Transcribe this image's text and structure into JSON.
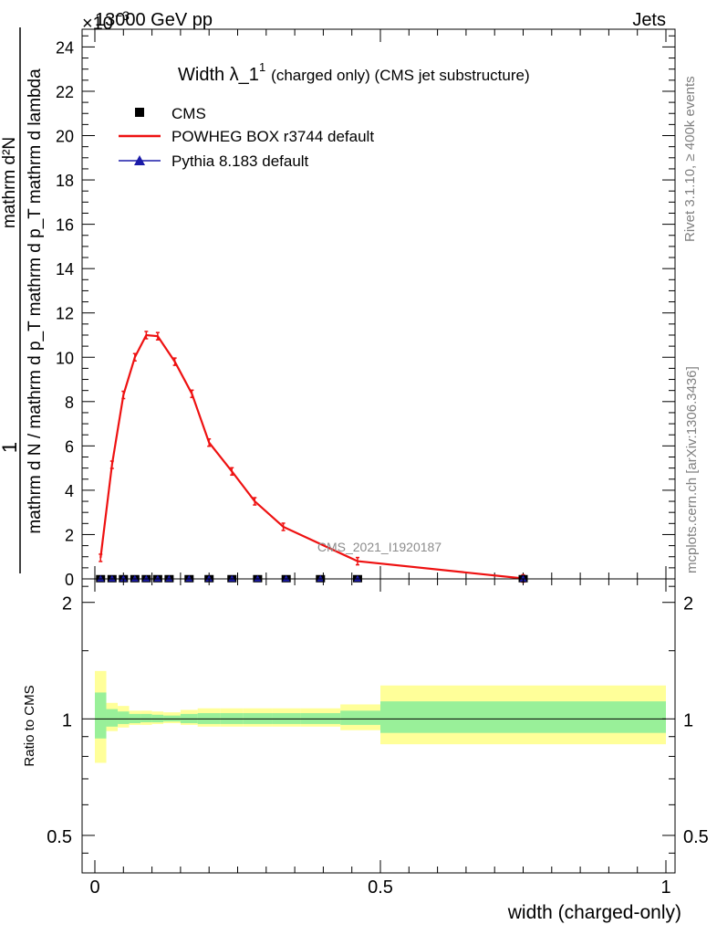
{
  "header": {
    "left": "13000 GeV pp",
    "right": "Jets",
    "exponent": "×10",
    "exponent_power": "−3"
  },
  "side_labels": {
    "rivet": "Rivet 3.1.10, ≥ 400k events",
    "mcplots": "mcplots.cern.ch [arXiv:1306.3436]"
  },
  "watermark": "CMS_2021_I1920187",
  "chart_data": [
    {
      "type": "line",
      "title_main": "Width λ_1",
      "title_sup": "1",
      "title_tail": "(charged only) (CMS jet substructure)",
      "ylabel_lines": [
        "1",
        "mathrm d N / mathrm d p_T mathrm d p_T mathrm d lambda",
        "mathrm d²N"
      ],
      "yticks": [
        0,
        2,
        4,
        6,
        8,
        10,
        12,
        14,
        16,
        18,
        20,
        22,
        24
      ],
      "ylim": [
        0,
        24.8
      ],
      "xlim": [
        -0.005,
        1.0
      ],
      "legend": [
        {
          "label": "CMS",
          "marker": "square",
          "color": "#000000"
        },
        {
          "label": "POWHEG BOX r3744 default",
          "marker": "line",
          "color": "#ee1111"
        },
        {
          "label": "Pythia 8.183 default",
          "marker": "triangle",
          "color": "#1a1aa8"
        }
      ],
      "series": [
        {
          "name": "POWHEG BOX r3744 default",
          "color": "#ee1111",
          "x": [
            0.01,
            0.03,
            0.05,
            0.07,
            0.09,
            0.11,
            0.14,
            0.17,
            0.2,
            0.24,
            0.28,
            0.33,
            0.46,
            0.75
          ],
          "y": [
            0.95,
            5.15,
            8.3,
            10.0,
            11.0,
            10.95,
            9.8,
            8.35,
            6.15,
            4.85,
            3.5,
            2.35,
            0.8,
            0.02
          ]
        },
        {
          "name": "CMS",
          "color": "#000000",
          "x": [
            0.01,
            0.03,
            0.05,
            0.07,
            0.09,
            0.11,
            0.13,
            0.165,
            0.2,
            0.24,
            0.285,
            0.335,
            0.395,
            0.46,
            0.75
          ],
          "y": [
            0.01,
            0.01,
            0.01,
            0.01,
            0.01,
            0.01,
            0.01,
            0.01,
            0.01,
            0.01,
            0.01,
            0.01,
            0.01,
            0.01,
            0.01
          ]
        }
      ]
    },
    {
      "type": "area",
      "ylabel": "Ratio to CMS",
      "xlabel": "width (charged-only)",
      "yticks": [
        0.5,
        1,
        2
      ],
      "ytick_labels": [
        "0.5",
        "1",
        "2"
      ],
      "xticks": [
        0,
        0.5,
        1
      ],
      "xtick_labels": [
        "0",
        "0.5",
        "1"
      ],
      "ylim": [
        0.4,
        2.3
      ],
      "y_scale": "log",
      "bands": {
        "edges": [
          0,
          0.02,
          0.04,
          0.06,
          0.08,
          0.1,
          0.12,
          0.15,
          0.18,
          0.22,
          0.26,
          0.31,
          0.36,
          0.43,
          0.5,
          1.0
        ],
        "yellow_lo": [
          0.77,
          0.93,
          0.95,
          0.965,
          0.965,
          0.97,
          0.975,
          0.965,
          0.955,
          0.955,
          0.955,
          0.955,
          0.955,
          0.935,
          0.86
        ],
        "yellow_hi": [
          1.33,
          1.1,
          1.08,
          1.05,
          1.05,
          1.045,
          1.04,
          1.055,
          1.065,
          1.065,
          1.065,
          1.065,
          1.065,
          1.09,
          1.22
        ],
        "green_lo": [
          0.89,
          0.955,
          0.97,
          0.975,
          0.98,
          0.98,
          0.985,
          0.975,
          0.97,
          0.97,
          0.97,
          0.97,
          0.97,
          0.965,
          0.92
        ],
        "green_hi": [
          1.17,
          1.06,
          1.045,
          1.03,
          1.03,
          1.025,
          1.02,
          1.03,
          1.035,
          1.035,
          1.035,
          1.035,
          1.035,
          1.05,
          1.11
        ]
      }
    }
  ]
}
